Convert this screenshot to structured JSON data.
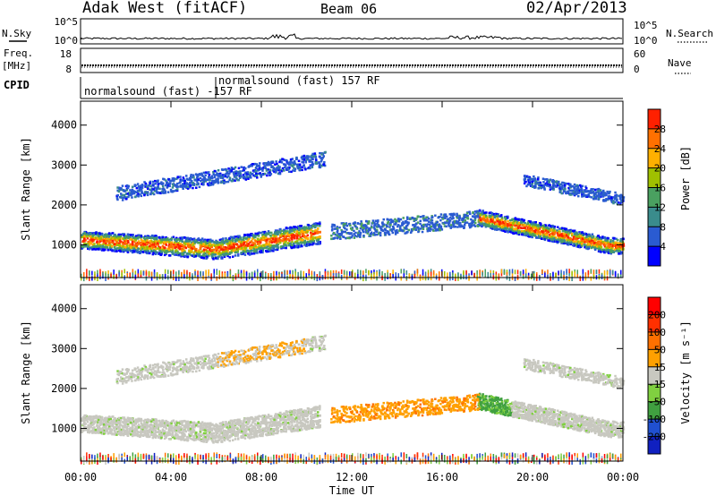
{
  "header": {
    "station": "Adak West (fitACF)",
    "beam": "Beam 06",
    "date": "02/Apr/2013"
  },
  "strip_panels": {
    "noise": {
      "left_label": "N.Sky",
      "right_label": "N.Search",
      "left_ticks": [
        "10^5",
        "10^0"
      ],
      "right_ticks": [
        "10^5",
        "10^0"
      ]
    },
    "freq": {
      "left_label": "Freq.",
      "left_unit": "[MHz]",
      "right_label": "Nave",
      "left_ticks": [
        "18",
        "8"
      ],
      "right_ticks": [
        "60",
        "0"
      ]
    },
    "cpid": {
      "label": "CPID",
      "program_1": "normalsound (fast) -157 RF",
      "program_2": "normalsound (fast) 157 RF"
    }
  },
  "colors": {
    "power_scale": [
      "#0000ff",
      "#2a5bd1",
      "#3a8c8c",
      "#4aa060",
      "#a0c000",
      "#ffb000",
      "#ff7000",
      "#ff2000"
    ],
    "velocity_scale": [
      "#1020c0",
      "#2050d0",
      "#40a040",
      "#80d040",
      "#c8c8c0",
      "#ffa000",
      "#ff7000",
      "#ff3000",
      "#ff0000"
    ],
    "grey": "#c8c8c0"
  },
  "chart_data": [
    {
      "type": "heatmap",
      "name": "power",
      "ylabel": "Slant Range [km]",
      "y_ticks": [
        1000,
        2000,
        3000,
        4000
      ],
      "ylim": [
        180,
        4600
      ],
      "x_ticks": [
        "00:00",
        "04:00",
        "08:00",
        "12:00",
        "16:00",
        "20:00",
        "00:00"
      ],
      "xlim_hours": [
        0,
        24
      ],
      "colorbar": {
        "label": "Power [dB]",
        "ticks": [
          "28",
          "24",
          "20",
          "16",
          "12",
          "8",
          "4"
        ]
      }
    },
    {
      "type": "heatmap",
      "name": "velocity",
      "ylabel": "Slant Range [km]",
      "y_ticks": [
        1000,
        2000,
        3000,
        4000
      ],
      "ylim": [
        180,
        4600
      ],
      "x_ticks": [
        "00:00",
        "04:00",
        "08:00",
        "12:00",
        "16:00",
        "20:00",
        "00:00"
      ],
      "xlabel": "Time UT",
      "xlim_hours": [
        0,
        24
      ],
      "colorbar": {
        "label": "Velocity [m s⁻¹]",
        "ticks": [
          "200",
          "100",
          "50",
          "15",
          "-15",
          "-50",
          "-100",
          "-200"
        ]
      }
    }
  ]
}
